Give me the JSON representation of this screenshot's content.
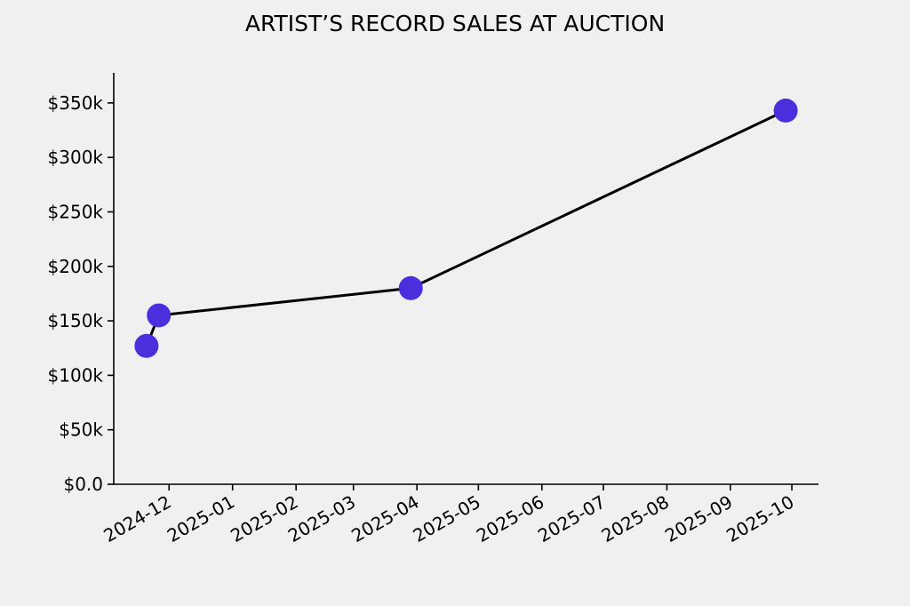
{
  "chart_data": {
    "type": "line",
    "title": "ARTIST’S RECORD SALES AT AUCTION",
    "xlabel": "",
    "ylabel": "",
    "x": [
      "2024-11-20",
      "2024-11-26",
      "2025-03-29",
      "2025-09-28"
    ],
    "values": [
      127000,
      155000,
      180000,
      343000
    ],
    "xlim": [
      "2024-11-04",
      "2025-10-14"
    ],
    "ylim": [
      0,
      377600
    ],
    "xticks": [
      "2024-12",
      "2025-01",
      "2025-02",
      "2025-03",
      "2025-04",
      "2025-05",
      "2025-06",
      "2025-07",
      "2025-08",
      "2025-09",
      "2025-10"
    ],
    "yticks": [
      0,
      50000,
      100000,
      150000,
      200000,
      250000,
      300000,
      350000
    ],
    "ytick_labels": [
      "$0.0",
      "$50k",
      "$100k",
      "$150k",
      "$200k",
      "$250k",
      "$300k",
      "$350k"
    ],
    "grid": false,
    "line_color": "#000000",
    "marker_color": "#4a30dc"
  }
}
